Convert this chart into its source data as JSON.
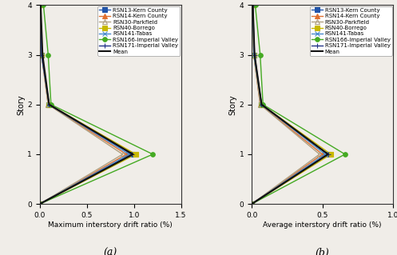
{
  "stories": [
    0,
    1,
    2,
    3,
    4
  ],
  "series_a": {
    "RSN13-Kern County": [
      0,
      0.98,
      0.1,
      0.02,
      0.01
    ],
    "RSN14-Kern County": [
      0,
      0.92,
      0.09,
      0.02,
      0.01
    ],
    "RSN30-Parkfield": [
      0,
      0.88,
      0.09,
      0.02,
      0.01
    ],
    "RSN40-Borrego": [
      0,
      1.02,
      0.1,
      0.02,
      0.01
    ],
    "RSN141-Tabas": [
      0,
      0.95,
      0.1,
      0.02,
      0.01
    ],
    "RSN166-Imperial Valley": [
      0,
      1.2,
      0.12,
      0.09,
      0.04
    ],
    "RSN171-Imperial Valley": [
      0,
      0.98,
      0.1,
      0.02,
      0.01
    ],
    "Mean": [
      0,
      0.99,
      0.1,
      0.03,
      0.01
    ]
  },
  "series_b": {
    "RSN13-Kern County": [
      0,
      0.54,
      0.07,
      0.015,
      0.008
    ],
    "RSN14-Kern County": [
      0,
      0.5,
      0.06,
      0.015,
      0.008
    ],
    "RSN30-Parkfield": [
      0,
      0.48,
      0.06,
      0.015,
      0.008
    ],
    "RSN40-Borrego": [
      0,
      0.56,
      0.07,
      0.015,
      0.008
    ],
    "RSN141-Tabas": [
      0,
      0.52,
      0.07,
      0.015,
      0.008
    ],
    "RSN166-Imperial Valley": [
      0,
      0.66,
      0.08,
      0.06,
      0.025
    ],
    "RSN171-Imperial Valley": [
      0,
      0.54,
      0.07,
      0.02,
      0.008
    ],
    "Mean": [
      0,
      0.54,
      0.07,
      0.02,
      0.008
    ]
  },
  "colors": {
    "RSN13-Kern County": "#2255aa",
    "RSN14-Kern County": "#e07030",
    "RSN30-Parkfield": "#b0a080",
    "RSN40-Borrego": "#c8b800",
    "RSN141-Tabas": "#4488cc",
    "RSN166-Imperial Valley": "#44aa22",
    "RSN171-Imperial Valley": "#223388",
    "Mean": "#111111"
  },
  "markers": {
    "RSN13-Kern County": "s",
    "RSN14-Kern County": "^",
    "RSN30-Parkfield": "^",
    "RSN40-Borrego": "s",
    "RSN141-Tabas": "x",
    "RSN166-Imperial Valley": "o",
    "RSN171-Imperial Valley": "+",
    "Mean": "None"
  },
  "markerfill": {
    "RSN13-Kern County": true,
    "RSN14-Kern County": true,
    "RSN30-Parkfield": false,
    "RSN40-Borrego": true,
    "RSN141-Tabas": false,
    "RSN166-Imperial Valley": true,
    "RSN171-Imperial Valley": false,
    "Mean": false
  },
  "linewidths": {
    "RSN13-Kern County": 1.0,
    "RSN14-Kern County": 1.0,
    "RSN30-Parkfield": 1.0,
    "RSN40-Borrego": 1.0,
    "RSN141-Tabas": 1.0,
    "RSN166-Imperial Valley": 1.0,
    "RSN171-Imperial Valley": 1.0,
    "Mean": 1.5
  },
  "legend_order": [
    "RSN13-Kern County",
    "RSN14-Kern County",
    "RSN30-Parkfield",
    "RSN40-Borrego",
    "RSN141-Tabas",
    "RSN166-Imperial Valley",
    "RSN171-Imperial Valley",
    "Mean"
  ],
  "xlabel_a": "Maximum interstory drift ratio (%)",
  "xlabel_b": "Average interstory drift ratio (%)",
  "ylabel": "Story",
  "xlim_a": [
    0,
    1.5
  ],
  "xlim_b": [
    0,
    1.0
  ],
  "ylim": [
    0,
    4
  ],
  "yticks": [
    0,
    1,
    2,
    3,
    4
  ],
  "xticks_a": [
    0,
    0.5,
    1.0,
    1.5
  ],
  "xticks_b": [
    0,
    0.5,
    1.0
  ],
  "label_a": "(a)",
  "label_b": "(b)",
  "bg_color": "#f0ede8"
}
